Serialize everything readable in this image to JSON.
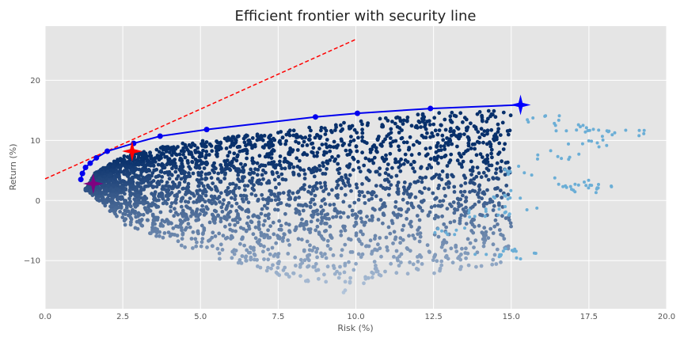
{
  "chart_data": {
    "type": "scatter",
    "title": "Efficient frontier with security line",
    "xlabel": "Risk (%)",
    "ylabel": "Return (%)",
    "xlim": [
      0,
      20
    ],
    "ylim": [
      -18,
      29
    ],
    "xticks": [
      0,
      2.5,
      5,
      7.5,
      10,
      12.5,
      15,
      17.5,
      20
    ],
    "xtick_labels": [
      "0.0",
      "2.5",
      "5.0",
      "7.5",
      "10.0",
      "12.5",
      "15.0",
      "17.5",
      "20.0"
    ],
    "yticks": [
      -10,
      0,
      10,
      20
    ],
    "ytick_labels": [
      "−10",
      "0",
      "10",
      "20"
    ],
    "grid": true,
    "background": "#e5e5e5",
    "colors": {
      "frontier": "#0000ee",
      "security_line": "#ff0000",
      "max_return_marker": "#0000ff",
      "tangency_marker": "#ff0000",
      "min_variance_marker": "#800080",
      "cloud_dark": "#08306b",
      "cloud_light": "#deebf7"
    },
    "scatter_cloud": {
      "description_free": true,
      "envelope_upper": [
        [
          1.3,
          2.0
        ],
        [
          1.6,
          5.0
        ],
        [
          2.5,
          7.8
        ],
        [
          4.0,
          9.6
        ],
        [
          6.0,
          11.0
        ],
        [
          8.0,
          12.2
        ],
        [
          10.0,
          13.6
        ],
        [
          12.0,
          14.8
        ],
        [
          14.0,
          15.4
        ],
        [
          15.0,
          15.8
        ]
      ],
      "envelope_lower": [
        [
          1.3,
          2.0
        ],
        [
          2.5,
          -4.0
        ],
        [
          5.0,
          -9.0
        ],
        [
          7.5,
          -12.5
        ],
        [
          9.5,
          -15.5
        ]
      ],
      "tail_points": [
        [
          16.0,
          13.5
        ],
        [
          17.0,
          12.0
        ],
        [
          18.0,
          11.3
        ],
        [
          18.6,
          11.3
        ],
        [
          17.5,
          9.5
        ],
        [
          16.5,
          7.5
        ],
        [
          17.0,
          3.0
        ],
        [
          18.0,
          2.0
        ],
        [
          17.2,
          2.2
        ],
        [
          15.5,
          5.0
        ],
        [
          15.0,
          1.0
        ],
        [
          14.0,
          -2.0
        ],
        [
          15.2,
          -1.8
        ],
        [
          13.0,
          -5.0
        ],
        [
          15.3,
          -9.0
        ],
        [
          14.5,
          -8.5
        ]
      ]
    },
    "efficient_frontier": {
      "x": [
        1.15,
        1.2,
        1.3,
        1.45,
        1.65,
        2.0,
        2.85,
        3.7,
        5.2,
        8.7,
        10.05,
        12.4,
        15.3
      ],
      "y": [
        3.5,
        4.5,
        5.5,
        6.2,
        7.1,
        8.2,
        9.5,
        10.7,
        11.8,
        13.9,
        14.5,
        15.3,
        15.9
      ]
    },
    "security_line": {
      "x": [
        0,
        10
      ],
      "y": [
        3.6,
        26.8
      ]
    },
    "special_points": [
      {
        "x": 15.3,
        "y": 15.9,
        "marker": "star",
        "color": "#0000ff"
      },
      {
        "x": 2.8,
        "y": 8.2,
        "marker": "star",
        "color": "#ff0000"
      },
      {
        "x": 1.55,
        "y": 2.8,
        "marker": "star",
        "color": "#800080"
      }
    ]
  }
}
